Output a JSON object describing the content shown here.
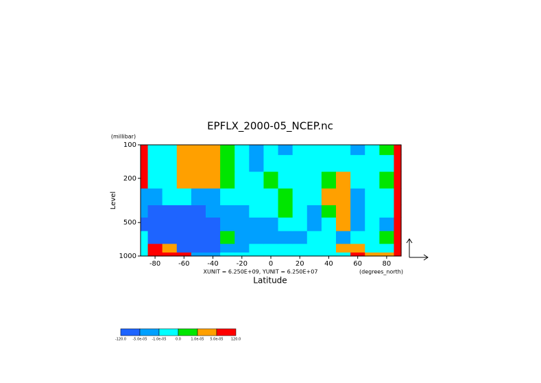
{
  "chart_data": {
    "type": "contour",
    "title": "EPFLX_2000-05_NCEP.nc",
    "y_unit_label": "(millibar)",
    "ylabel": "Level",
    "xlabel": "Latitude",
    "x_unit_label": "(degrees_north)",
    "annotation": "XUNIT = 6.250E+09, YUNIT = 6.250E+07",
    "xlim": [
      -90,
      90
    ],
    "xticks": [
      -80,
      -60,
      -40,
      -20,
      0,
      20,
      40,
      60,
      80
    ],
    "ylim": [
      1000,
      100
    ],
    "yticks": [
      100,
      200,
      500,
      1000
    ],
    "log_y": true,
    "x": [
      -90,
      -80,
      -70,
      -60,
      -50,
      -40,
      -30,
      -20,
      -10,
      0,
      10,
      20,
      30,
      40,
      50,
      60,
      70,
      80,
      90
    ],
    "y": [
      1000,
      850,
      700,
      500,
      400,
      300,
      200,
      150,
      100
    ],
    "z": [
      [
        -5e-06,
        6e-05,
        6e-05,
        6e-05,
        -3e-05,
        -3e-05,
        -5e-06,
        -5e-06,
        -5e-06,
        -5e-06,
        -5e-06,
        -5e-06,
        -5e-06,
        -5e-06,
        -5e-06,
        6e-05,
        3e-05,
        3e-05,
        6e-05
      ],
      [
        -5e-06,
        6e-05,
        3e-05,
        -6e-05,
        -6e-05,
        -6e-05,
        -3e-05,
        -3e-05,
        -5e-06,
        -5e-06,
        -5e-06,
        -5e-06,
        -5e-06,
        -5e-06,
        3e-05,
        3e-05,
        -5e-06,
        -5e-06,
        6e-05
      ],
      [
        -5e-06,
        -6e-05,
        -6e-05,
        -6e-05,
        -6e-05,
        -6e-05,
        5e-06,
        -3e-05,
        -3e-05,
        -3e-05,
        -3e-05,
        -3e-05,
        -5e-06,
        -5e-06,
        -3e-05,
        -5e-06,
        -5e-06,
        5e-06,
        6e-05
      ],
      [
        -6e-05,
        -6e-05,
        -6e-05,
        -6e-05,
        -6e-05,
        -6e-05,
        -3e-05,
        -3e-05,
        -3e-05,
        -3e-05,
        -5e-06,
        -5e-06,
        -3e-05,
        -5e-06,
        3e-05,
        -3e-05,
        -5e-06,
        -3e-05,
        6e-05
      ],
      [
        -3e-05,
        -6e-05,
        -6e-05,
        -6e-05,
        -6e-05,
        -3e-05,
        -3e-05,
        -3e-05,
        -5e-06,
        -5e-06,
        5e-06,
        -5e-06,
        -3e-05,
        5e-06,
        3e-05,
        -3e-05,
        -5e-06,
        -5e-06,
        6e-05
      ],
      [
        -3e-05,
        -3e-05,
        -5e-06,
        -5e-06,
        -3e-05,
        -3e-05,
        -5e-06,
        -5e-06,
        -5e-06,
        -5e-06,
        5e-06,
        -5e-06,
        -5e-06,
        3e-05,
        3e-05,
        -3e-05,
        -5e-06,
        -5e-06,
        6e-05
      ],
      [
        6e-05,
        -5e-06,
        -5e-06,
        3e-05,
        3e-05,
        3e-05,
        5e-06,
        -5e-06,
        -5e-06,
        5e-06,
        -5e-06,
        -5e-06,
        -5e-06,
        5e-06,
        3e-05,
        -5e-06,
        -5e-06,
        5e-06,
        6e-05
      ],
      [
        6e-05,
        -5e-06,
        -5e-06,
        3e-05,
        3e-05,
        3e-05,
        5e-06,
        -5e-06,
        -3e-05,
        -5e-06,
        -5e-06,
        -5e-06,
        -5e-06,
        -5e-06,
        -5e-06,
        -5e-06,
        -5e-06,
        -5e-06,
        6e-05
      ],
      [
        6e-05,
        -5e-06,
        -5e-06,
        3e-05,
        3e-05,
        3e-05,
        5e-06,
        -5e-06,
        -3e-05,
        -5e-06,
        -3e-05,
        -5e-06,
        -5e-06,
        -5e-06,
        -5e-06,
        -3e-05,
        -5e-06,
        5e-06,
        6e-05
      ]
    ],
    "colorbar": {
      "colors": [
        "#1e64ff",
        "#00a0ff",
        "#00ffff",
        "#00e600",
        "#ffa000",
        "#ff0000"
      ],
      "ticks": [
        {
          "value": -120,
          "label": "-120.0"
        },
        {
          "value": -5e-05,
          "label": "-5.0e-05"
        },
        {
          "value": -1e-05,
          "label": "-1.0e-05"
        },
        {
          "value": 0,
          "label": "0.0"
        },
        {
          "value": 1e-05,
          "label": "1.0e-05"
        },
        {
          "value": 5e-05,
          "label": "5.0e-05"
        },
        {
          "value": 120,
          "label": "120.0"
        }
      ]
    }
  }
}
